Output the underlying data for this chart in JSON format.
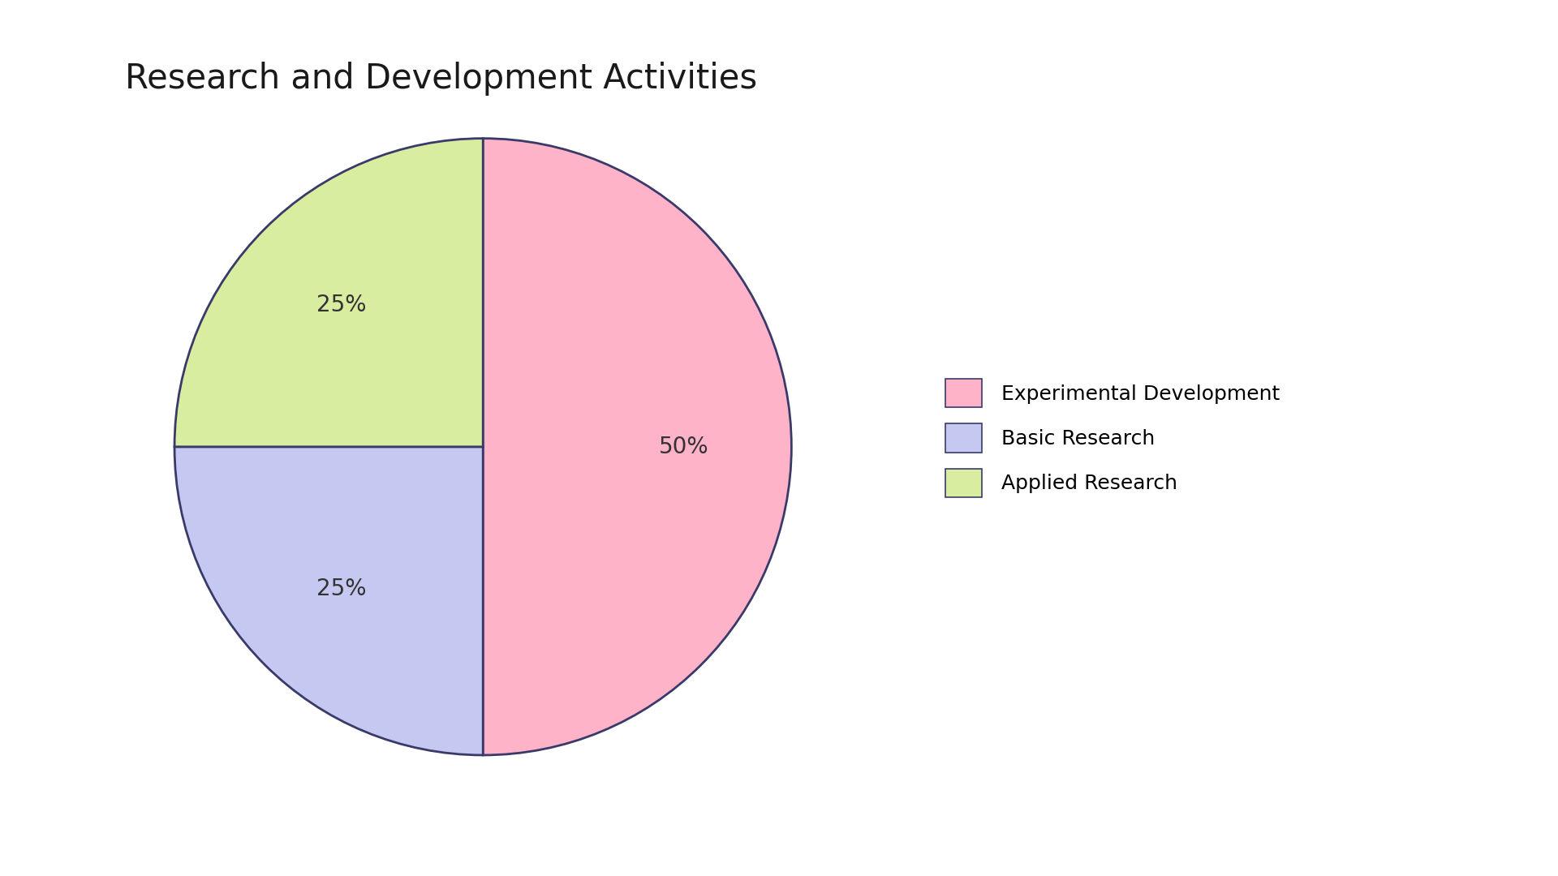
{
  "title": "Research and Development Activities",
  "labels": [
    "Experimental Development",
    "Basic Research",
    "Applied Research"
  ],
  "values": [
    50,
    25,
    25
  ],
  "colors": [
    "#FFB3C8",
    "#C5C8F0",
    "#D8EDA0"
  ],
  "edge_color": "#3A3A6A",
  "startangle": 90,
  "title_fontsize": 30,
  "autopct_fontsize": 20,
  "legend_fontsize": 18,
  "background_color": "#FFFFFF"
}
